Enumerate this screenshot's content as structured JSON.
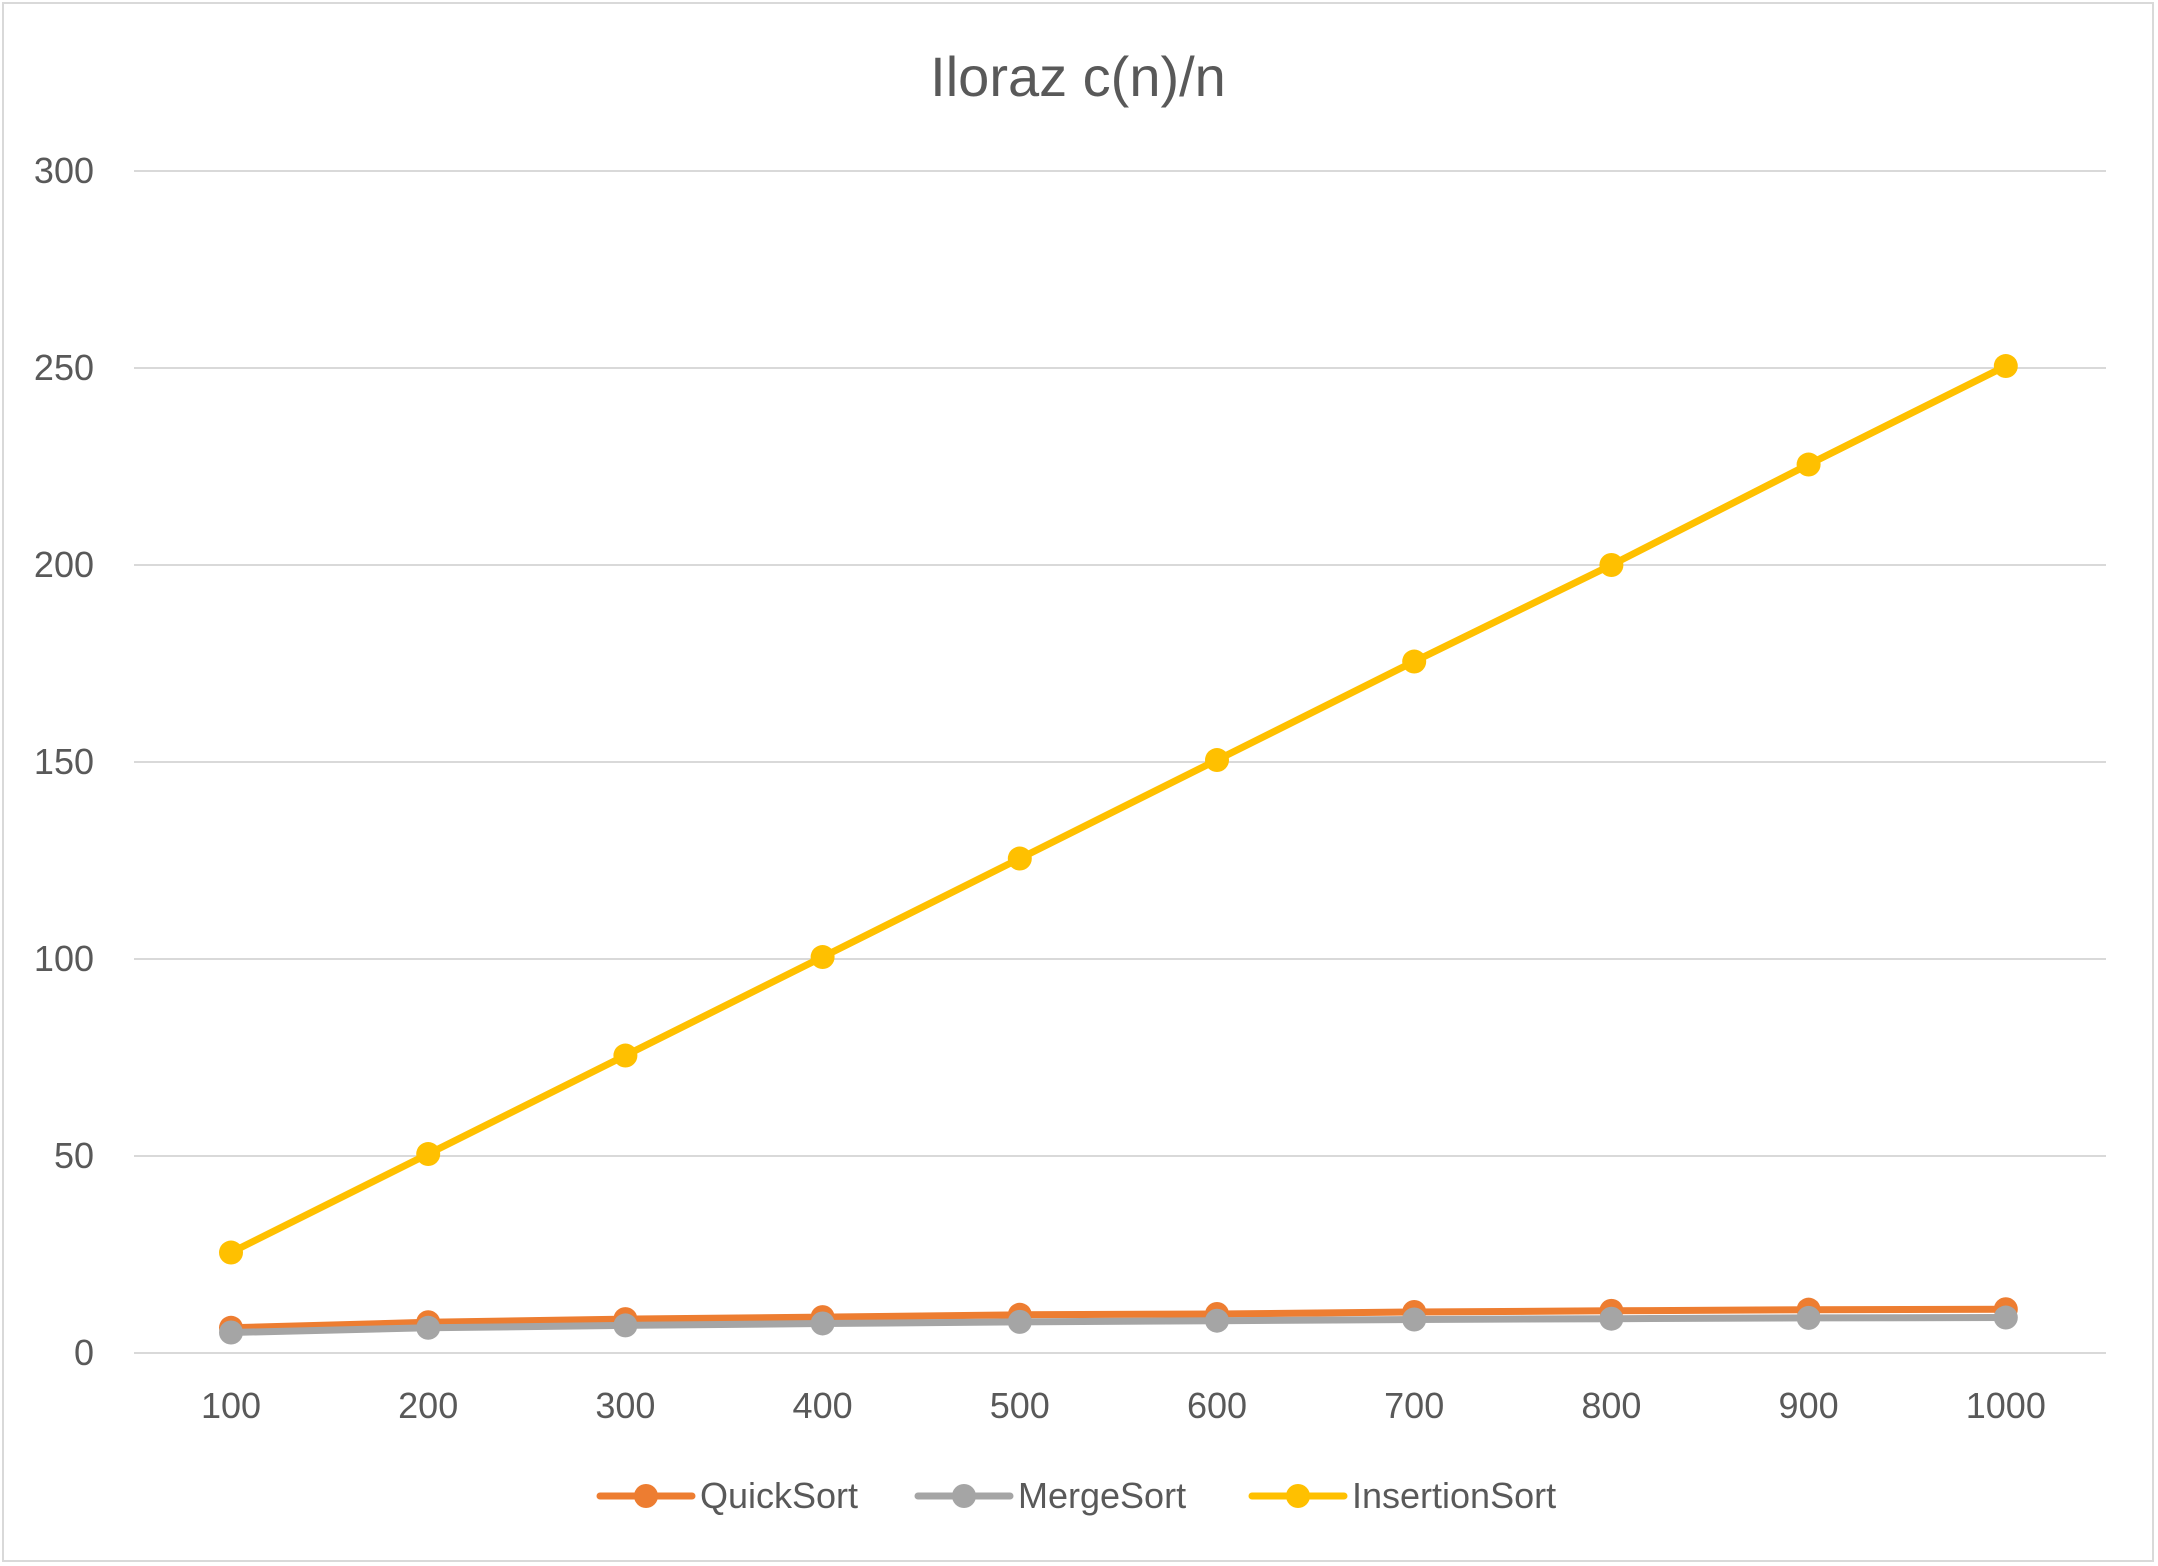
{
  "chart_data": {
    "type": "line",
    "title": "Iloraz c(n)/n",
    "xlabel": "",
    "ylabel": "",
    "categories": [
      "100",
      "200",
      "300",
      "400",
      "500",
      "600",
      "700",
      "800",
      "900",
      "1000"
    ],
    "yticks": [
      "0",
      "50",
      "100",
      "150",
      "200",
      "250",
      "300"
    ],
    "ylim": [
      0,
      300
    ],
    "grid": "horizontal",
    "legend_position": "bottom",
    "series": [
      {
        "name": "QuickSort",
        "color": "#ED7D31",
        "values": [
          6.4,
          7.8,
          8.6,
          9.1,
          9.7,
          9.9,
          10.4,
          10.7,
          11.0,
          11.1
        ]
      },
      {
        "name": "MergeSort",
        "color": "#A5A5A5",
        "values": [
          5.2,
          6.4,
          7.0,
          7.5,
          7.9,
          8.2,
          8.5,
          8.7,
          8.9,
          9.0
        ]
      },
      {
        "name": "InsertionSort",
        "color": "#FFC000",
        "values": [
          25.5,
          50.5,
          75.5,
          100.5,
          125.5,
          150.5,
          175.5,
          200.0,
          225.5,
          250.5
        ]
      }
    ]
  }
}
